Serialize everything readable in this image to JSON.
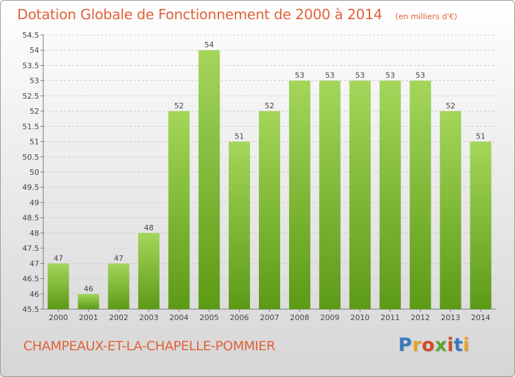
{
  "header": {
    "title": "Dotation Globale de Fonctionnement de 2000 à 2014",
    "unit": "(en milliers d'€)"
  },
  "footer": {
    "commune": "CHAMPEAUX-ET-LA-CHAPELLE-POMMIER",
    "logo_text": "Proxiti",
    "logo_colors": [
      "#3a78c2",
      "#e8a020",
      "#d24a2a",
      "#5aa832",
      "#d24a2a",
      "#3a78c2",
      "#e8a020"
    ]
  },
  "colors": {
    "title": "#e0623a",
    "bar_top": "#a4d65a",
    "bar_bottom": "#5c9a16",
    "grid": "#c9c9c9"
  },
  "chart_data": {
    "type": "bar",
    "categories": [
      "2000",
      "2001",
      "2002",
      "2003",
      "2004",
      "2005",
      "2006",
      "2007",
      "2008",
      "2009",
      "2010",
      "2011",
      "2012",
      "2013",
      "2014"
    ],
    "values": [
      47,
      46,
      47,
      48,
      52,
      54,
      51,
      52,
      53,
      53,
      53,
      53,
      53,
      52,
      51
    ],
    "value_labels": [
      "47",
      "46",
      "47",
      "48",
      "52",
      "54",
      "51",
      "52",
      "53",
      "53",
      "53",
      "53",
      "53",
      "52",
      "51"
    ],
    "ylim": [
      45.5,
      54.5
    ],
    "yticks": [
      45.5,
      46,
      46.5,
      47,
      47.5,
      48,
      48.5,
      49,
      49.5,
      50,
      50.5,
      51,
      51.5,
      52,
      52.5,
      53,
      53.5,
      54,
      54.5
    ],
    "ytick_labels": [
      "45.5",
      "46",
      "46.5",
      "47",
      "47.5",
      "48",
      "48.5",
      "49",
      "49.5",
      "50",
      "50.5",
      "51",
      "51.5",
      "52",
      "52.5",
      "53",
      "53.5",
      "54",
      "54.5"
    ],
    "grid": true,
    "legend": "none"
  }
}
